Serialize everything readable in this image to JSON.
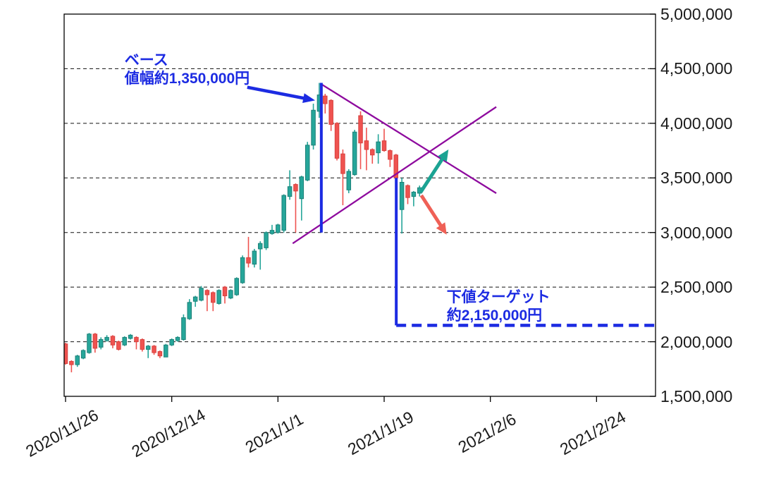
{
  "chart_data": {
    "type": "candlestick",
    "title": "",
    "x_axis": {
      "tick_labels": [
        "2020/11/26",
        "2020/12/14",
        "2021/1/1",
        "2021/1/19",
        "2021/2/6",
        "2021/2/24"
      ],
      "tick_days": [
        0,
        18,
        36,
        54,
        72,
        90
      ],
      "xlim_days": [
        -0.25,
        100
      ]
    },
    "y_axis": {
      "tick_labels": [
        "5,000,000",
        "4,500,000",
        "4,000,000",
        "3,500,000",
        "3,000,000",
        "2,500,000",
        "2,000,000",
        "1,500,000"
      ],
      "tick_values": [
        5000000,
        4500000,
        4000000,
        3500000,
        3000000,
        2500000,
        2000000,
        1500000
      ],
      "ylim": [
        1500000,
        5000000
      ]
    },
    "grid": "horizontal-dashed",
    "legend": "none",
    "candles": {
      "columns": [
        "date",
        "open",
        "high",
        "low",
        "close"
      ],
      "rows": [
        [
          "2020/11/26",
          1980000,
          1990000,
          1790000,
          1800000
        ],
        [
          "2020/11/27",
          1820000,
          1830000,
          1720000,
          1790000
        ],
        [
          "2020/11/28",
          1790000,
          1880000,
          1770000,
          1870000
        ],
        [
          "2020/11/29",
          1850000,
          1930000,
          1840000,
          1920000
        ],
        [
          "2020/11/30",
          1900000,
          2080000,
          1890000,
          2070000
        ],
        [
          "2020/12/1",
          2070000,
          2080000,
          1900000,
          1940000
        ],
        [
          "2020/12/2",
          1950000,
          2040000,
          1930000,
          2020000
        ],
        [
          "2020/12/3",
          2010000,
          2060000,
          2000000,
          2040000
        ],
        [
          "2020/12/4",
          2050000,
          2060000,
          1940000,
          1970000
        ],
        [
          "2020/12/5",
          2000000,
          2010000,
          1920000,
          1930000
        ],
        [
          "2020/12/6",
          1970000,
          2050000,
          1960000,
          2040000
        ],
        [
          "2020/12/7",
          2030000,
          2070000,
          2020000,
          2060000
        ],
        [
          "2020/12/8",
          2040000,
          2050000,
          1930000,
          2000000
        ],
        [
          "2020/12/9",
          2020000,
          2030000,
          1910000,
          1930000
        ],
        [
          "2020/12/10",
          1930000,
          1970000,
          1850000,
          1960000
        ],
        [
          "2020/12/11",
          1960000,
          1970000,
          1880000,
          1900000
        ],
        [
          "2020/12/12",
          1910000,
          1920000,
          1850000,
          1870000
        ],
        [
          "2020/12/13",
          1860000,
          1980000,
          1860000,
          1970000
        ],
        [
          "2020/12/14",
          1970000,
          2030000,
          1960000,
          2020000
        ],
        [
          "2020/12/15",
          2010000,
          2050000,
          2000000,
          2040000
        ],
        [
          "2020/12/16",
          2020000,
          2250000,
          2010000,
          2220000
        ],
        [
          "2020/12/17",
          2210000,
          2390000,
          2200000,
          2360000
        ],
        [
          "2020/12/18",
          2370000,
          2420000,
          2320000,
          2410000
        ],
        [
          "2020/12/19",
          2380000,
          2510000,
          2370000,
          2490000
        ],
        [
          "2020/12/20",
          2470000,
          2480000,
          2280000,
          2430000
        ],
        [
          "2020/12/21",
          2450000,
          2460000,
          2280000,
          2360000
        ],
        [
          "2020/12/22",
          2350000,
          2480000,
          2340000,
          2470000
        ],
        [
          "2020/12/23",
          2500000,
          2510000,
          2350000,
          2420000
        ],
        [
          "2020/12/24",
          2400000,
          2480000,
          2390000,
          2470000
        ],
        [
          "2020/12/25",
          2430000,
          2590000,
          2420000,
          2580000
        ],
        [
          "2020/12/26",
          2540000,
          2790000,
          2530000,
          2770000
        ],
        [
          "2020/12/27",
          2770000,
          2960000,
          2680000,
          2720000
        ],
        [
          "2020/12/28",
          2710000,
          2850000,
          2680000,
          2830000
        ],
        [
          "2020/12/29",
          2850000,
          2920000,
          2660000,
          2900000
        ],
        [
          "2020/12/30",
          2860000,
          3010000,
          2840000,
          3000000
        ],
        [
          "2020/12/31",
          2990000,
          3070000,
          2980000,
          3020000
        ],
        [
          "2021/1/1",
          3000000,
          3080000,
          2990000,
          3070000
        ],
        [
          "2021/1/2",
          3020000,
          3350000,
          3000000,
          3340000
        ],
        [
          "2021/1/3",
          3330000,
          3570000,
          3300000,
          3420000
        ],
        [
          "2021/1/4",
          3440000,
          3450000,
          3000000,
          3380000
        ],
        [
          "2021/1/5",
          3310000,
          3520000,
          3110000,
          3510000
        ],
        [
          "2021/1/6",
          3480000,
          3830000,
          3470000,
          3800000
        ],
        [
          "2021/1/7",
          3800000,
          4180000,
          3760000,
          4120000
        ],
        [
          "2021/1/8",
          4110000,
          4370000,
          4050000,
          4260000
        ],
        [
          "2021/1/9",
          4250000,
          4270000,
          4090000,
          4180000
        ],
        [
          "2021/1/10",
          4210000,
          4220000,
          3930000,
          3990000
        ],
        [
          "2021/1/11",
          4000000,
          4010000,
          3660000,
          3680000
        ],
        [
          "2021/1/12",
          3720000,
          3760000,
          3250000,
          3540000
        ],
        [
          "2021/1/13",
          3390000,
          3580000,
          3360000,
          3560000
        ],
        [
          "2021/1/14",
          3530000,
          3940000,
          3520000,
          3920000
        ],
        [
          "2021/1/15",
          4070000,
          4110000,
          3580000,
          3820000
        ],
        [
          "2021/1/16",
          3840000,
          3960000,
          3570000,
          3760000
        ],
        [
          "2021/1/17",
          3760000,
          3770000,
          3630000,
          3710000
        ],
        [
          "2021/1/18",
          3730000,
          3900000,
          3630000,
          3830000
        ],
        [
          "2021/1/19",
          3840000,
          3950000,
          3740000,
          3750000
        ],
        [
          "2021/1/20",
          3750000,
          3760000,
          3600000,
          3670000
        ],
        [
          "2021/1/21",
          3710000,
          3720000,
          3130000,
          3500000
        ],
        [
          "2021/1/22",
          3210000,
          3500000,
          2990000,
          3460000
        ],
        [
          "2021/1/23",
          3430000,
          3440000,
          3260000,
          3320000
        ],
        [
          "2021/1/24",
          3330000,
          3380000,
          3240000,
          3370000
        ],
        [
          "2021/1/25",
          3360000,
          3430000,
          3330000,
          3410000
        ]
      ]
    },
    "annotations": {
      "base_label": {
        "line1": "ベース",
        "line2": "値幅約1,350,000円",
        "anchor": {
          "day": 10.0,
          "price": 4658000
        }
      },
      "target_label": {
        "line1": "下値ターゲット",
        "line2": "約2,150,000円",
        "anchor": {
          "day": 64.6,
          "price": 2488000
        }
      },
      "base_arrow": {
        "from": {
          "day": 30.8,
          "price": 4330000
        },
        "to": {
          "day": 42.3,
          "price": 4210000
        }
      },
      "measure_line_high": {
        "day": 43.35,
        "price_from": 4370000,
        "price_to": 3000000
      },
      "measure_line_target": {
        "day": 56.05,
        "price_from": 3500000,
        "price_to": 2150000
      },
      "target_line": {
        "price": 2150000,
        "day_from": 56.05,
        "day_to": 100
      },
      "triangle_resistance": {
        "from": {
          "day": 43.15,
          "price": 4365000
        },
        "to": {
          "day": 73.0,
          "price": 3360000
        }
      },
      "triangle_support": {
        "from": {
          "day": 38.5,
          "price": 2900000
        },
        "to": {
          "day": 73.0,
          "price": 4150000
        }
      },
      "bull_arrow": {
        "from": {
          "day": 60.2,
          "price": 3370000
        },
        "to": {
          "day": 64.9,
          "price": 3760000
        }
      },
      "bear_arrow": {
        "from": {
          "day": 60.3,
          "price": 3340000
        },
        "to": {
          "day": 64.6,
          "price": 2980000
        }
      }
    },
    "colors": {
      "up": "#26a69a",
      "up_border": "#1d8178",
      "down": "#ef5350",
      "down_border": "#d84340",
      "annotation_blue": "#1c2be2",
      "trendline_purple": "#8e0a9e",
      "bull_arrow": "#1ba393",
      "bear_arrow": "#ef6056",
      "axis": "#000000",
      "tick_label": "#1a1a1a"
    }
  }
}
